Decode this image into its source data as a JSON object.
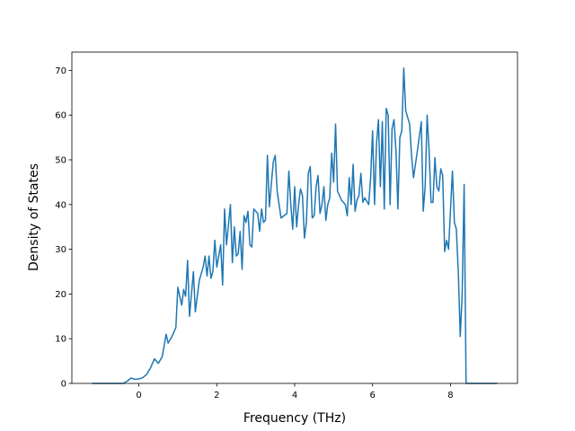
{
  "chart_data": {
    "type": "line",
    "xlabel": "Frequency (THz)",
    "ylabel": "Density of States",
    "color": "#1f77b4",
    "grid": false,
    "xlim": [
      -1.72,
      9.72
    ],
    "ylim": [
      0,
      74.1
    ],
    "xticks": [
      0,
      2,
      4,
      6,
      8
    ],
    "yticks": [
      0,
      10,
      20,
      30,
      40,
      50,
      60,
      70
    ],
    "x": [
      -1.2,
      -0.4,
      -0.3,
      -0.2,
      -0.1,
      0,
      0.1,
      0.2,
      0.3,
      0.4,
      0.5,
      0.6,
      0.7,
      0.75,
      0.85,
      0.95,
      1.0,
      1.1,
      1.15,
      1.2,
      1.25,
      1.3,
      1.4,
      1.45,
      1.55,
      1.65,
      1.7,
      1.75,
      1.8,
      1.85,
      1.9,
      1.95,
      2.0,
      2.1,
      2.15,
      2.2,
      2.25,
      2.35,
      2.4,
      2.45,
      2.5,
      2.55,
      2.6,
      2.65,
      2.7,
      2.75,
      2.8,
      2.85,
      2.9,
      2.95,
      3.05,
      3.1,
      3.15,
      3.2,
      3.25,
      3.3,
      3.35,
      3.45,
      3.5,
      3.55,
      3.65,
      3.8,
      3.85,
      3.9,
      3.95,
      4.0,
      4.05,
      4.1,
      4.15,
      4.2,
      4.25,
      4.3,
      4.35,
      4.4,
      4.45,
      4.5,
      4.55,
      4.6,
      4.65,
      4.7,
      4.75,
      4.8,
      4.85,
      4.9,
      4.95,
      5.0,
      5.05,
      5.1,
      5.2,
      5.3,
      5.35,
      5.4,
      5.45,
      5.5,
      5.55,
      5.6,
      5.65,
      5.7,
      5.75,
      5.8,
      5.9,
      5.95,
      6.0,
      6.05,
      6.1,
      6.15,
      6.2,
      6.25,
      6.3,
      6.35,
      6.4,
      6.45,
      6.5,
      6.55,
      6.6,
      6.65,
      6.7,
      6.75,
      6.8,
      6.85,
      6.95,
      7.0,
      7.05,
      7.15,
      7.25,
      7.3,
      7.35,
      7.4,
      7.45,
      7.5,
      7.55,
      7.6,
      7.65,
      7.7,
      7.75,
      7.8,
      7.85,
      7.9,
      7.95,
      8.05,
      8.1,
      8.15,
      8.2,
      8.25,
      8.3,
      8.35,
      8.4,
      9.2
    ],
    "values": [
      0,
      0,
      0.5,
      1.2,
      0.9,
      1.0,
      1.3,
      2,
      3.5,
      5.5,
      4.5,
      6,
      11,
      9,
      10.5,
      12.5,
      21.5,
      17.5,
      21,
      19.5,
      27.5,
      15,
      25,
      16,
      23,
      26,
      28.5,
      24,
      28.5,
      23.5,
      25,
      32,
      26,
      31,
      22,
      39,
      31,
      40,
      27,
      35,
      28.5,
      29,
      34,
      25.5,
      37.5,
      36,
      38.5,
      31,
      30.5,
      39,
      38,
      34,
      39,
      36,
      36.5,
      51,
      39.5,
      49.5,
      51,
      43,
      37,
      38,
      47.5,
      40,
      34.5,
      44,
      35,
      40,
      43.5,
      42,
      32.5,
      36,
      47,
      48.5,
      37,
      37.5,
      44,
      46.5,
      38,
      40,
      44,
      36.5,
      40,
      41.5,
      51.5,
      45,
      58,
      43,
      41,
      40,
      37.5,
      46,
      40,
      49,
      38.5,
      41,
      42,
      47,
      40.5,
      41.5,
      40,
      46,
      56.5,
      40,
      53.5,
      59,
      44,
      58.5,
      39,
      61.5,
      60,
      40,
      57,
      59,
      52,
      39,
      55,
      56.5,
      70.5,
      61,
      58,
      51,
      46,
      52,
      58.5,
      38.5,
      44,
      60,
      52,
      40.5,
      40.5,
      50.5,
      44,
      43,
      48,
      46.5,
      29.5,
      32,
      30,
      47.5,
      36,
      34.5,
      25,
      10.5,
      20,
      44.5,
      0,
      0
    ]
  }
}
